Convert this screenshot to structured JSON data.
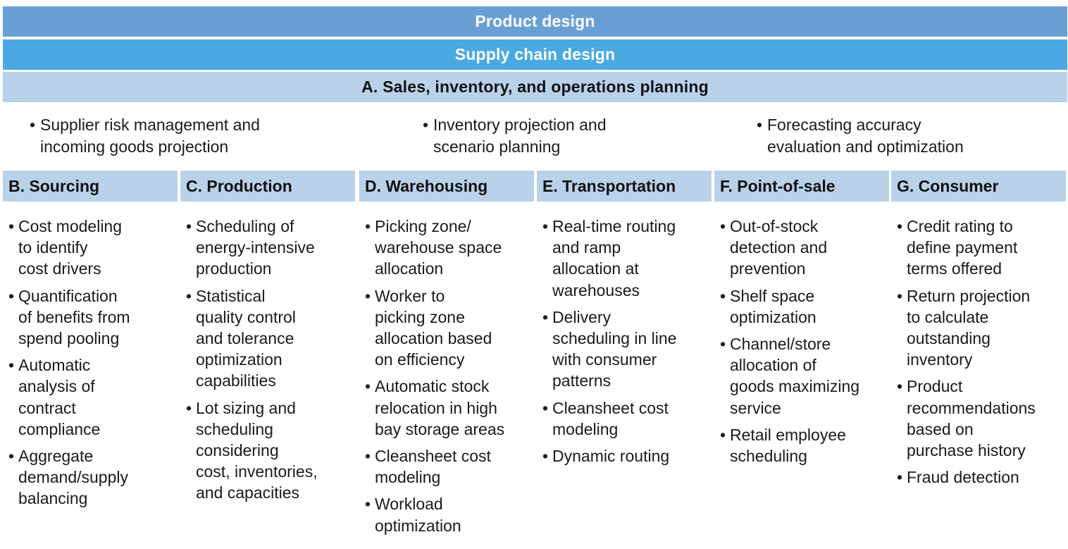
{
  "bands": {
    "product_design": "Product design",
    "supply_chain_design": "Supply chain design",
    "planning": "A. Sales, inventory, and operations planning"
  },
  "bullet_glyph": "•",
  "planning_items": [
    "Supplier risk management and\nincoming goods projection",
    "Inventory projection and\nscenario planning",
    "Forecasting accuracy\nevaluation and optimization"
  ],
  "columns": [
    {
      "title": "B. Sourcing",
      "items": [
        "Cost modeling\nto identify\ncost drivers",
        "Quantification\nof benefits from\nspend pooling",
        "Automatic\nanalysis of\ncontract\ncompliance",
        "Aggregate\ndemand/supply\nbalancing"
      ]
    },
    {
      "title": "C. Production",
      "items": [
        "Scheduling of\nenergy-intensive\nproduction",
        "Statistical\nquality control\nand tolerance\noptimization\ncapabilities",
        "Lot sizing and\nscheduling\nconsidering\ncost, inventories,\nand capacities"
      ]
    },
    {
      "title": "D. Warehousing",
      "items": [
        "Picking zone/\nwarehouse space\nallocation",
        "Worker to\npicking zone\nallocation based\non efficiency",
        "Automatic stock\nrelocation in high\nbay storage areas",
        "Cleansheet cost\nmodeling",
        "Workload\noptimization"
      ]
    },
    {
      "title": "E. Transportation",
      "items": [
        "Real-time routing\nand ramp\nallocation at\nwarehouses",
        "Delivery\nscheduling in line\nwith consumer\npatterns",
        "Cleansheet cost\nmodeling",
        "Dynamic routing"
      ]
    },
    {
      "title": "F. Point-of-sale",
      "items": [
        "Out-of-stock\ndetection and\nprevention",
        "Shelf space\noptimization",
        "Channel/store\nallocation of\ngoods maximizing\nservice",
        "Retail employee\nscheduling"
      ]
    },
    {
      "title": "G. Consumer",
      "items": [
        "Credit rating to\ndefine payment\nterms offered",
        "Return projection\nto calculate\noutstanding\ninventory",
        "Product\nrecommendations\nbased on\npurchase history",
        "Fraud detection"
      ]
    }
  ]
}
